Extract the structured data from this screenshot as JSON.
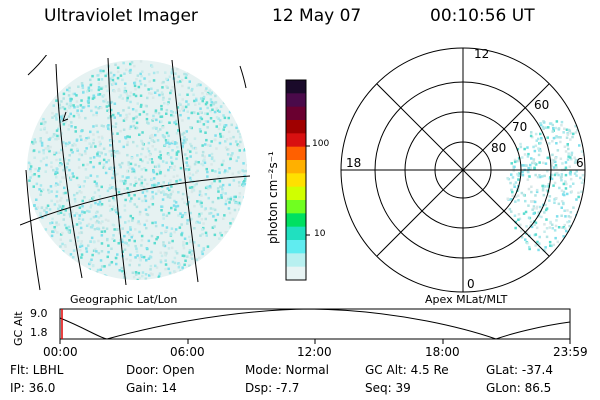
{
  "header": {
    "title": "Ultraviolet Imager",
    "date": "12 May 07",
    "time": "00:10:56 UT"
  },
  "left_panel": {
    "caption": "Geographic Lat/Lon"
  },
  "right_panel": {
    "caption": "Apex MLat/MLT",
    "mlt_labels": {
      "top": "12",
      "left": "18",
      "right": "6",
      "bottom": "0"
    },
    "lat_labels": [
      "60",
      "70",
      "80"
    ]
  },
  "colorbar": {
    "unit_label": "photon cm⁻²s⁻¹",
    "ticks": [
      "100",
      "10"
    ],
    "colors": [
      "#1a0a2a",
      "#4a0a4a",
      "#6a0030",
      "#a00000",
      "#d81010",
      "#ff6000",
      "#ffb000",
      "#ffe000",
      "#d0ff00",
      "#70ff20",
      "#00e060",
      "#20e0c0",
      "#60ecf0",
      "#b8f0f0",
      "#e8f4f4"
    ]
  },
  "altitude_track": {
    "axis_title": "GC Alt",
    "y_ticks": [
      "9.0",
      "1.8"
    ],
    "x_ticks": [
      "00:00",
      "06:00",
      "12:00",
      "18:00",
      "23:59"
    ]
  },
  "info": {
    "row1": {
      "flt": "Flt: LBHL",
      "door": "Door: Open",
      "mode": "Mode: Normal",
      "gc_alt": "GC Alt: 4.5 Re",
      "glat": "GLat: -37.4"
    },
    "row2": {
      "ip": "IP: 36.0",
      "gain": "Gain: 14",
      "dsp": "Dsp:   -7.7",
      "seq": "Seq: 39",
      "glon": "GLon:  86.5"
    }
  }
}
